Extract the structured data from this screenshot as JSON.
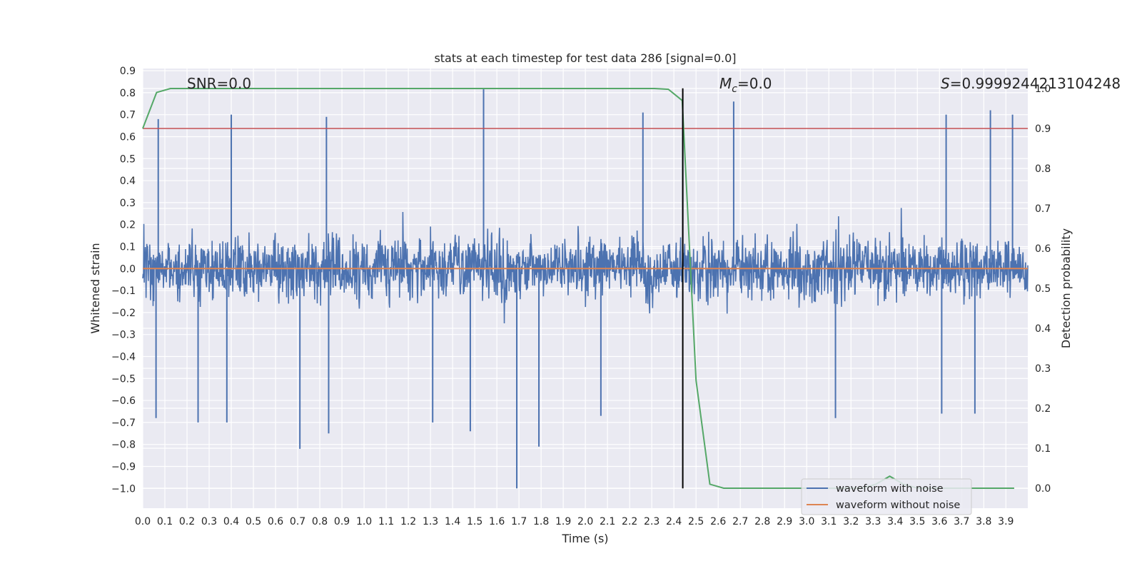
{
  "chart_data": {
    "type": "line",
    "title": "stats at each timestep for test data 286 [signal=0.0]",
    "xlabel": "Time (s)",
    "ylabel": "Whitened strain",
    "ylabel_right": "Detection probability",
    "xlim": [
      0.0,
      3.999
    ],
    "ylim": [
      -1.09,
      0.91
    ],
    "ylim_right": [
      -0.05,
      1.05
    ],
    "x_ticks": [
      0.0,
      0.1,
      0.2,
      0.3,
      0.4,
      0.5,
      0.6,
      0.7,
      0.8,
      0.9,
      1.0,
      1.1,
      1.2,
      1.3,
      1.4,
      1.5,
      1.6,
      1.7,
      1.8,
      1.9,
      2.0,
      2.1,
      2.2,
      2.3,
      2.4,
      2.5,
      2.6,
      2.7,
      2.8,
      2.9,
      3.0,
      3.1,
      3.2,
      3.3,
      3.4,
      3.5,
      3.6,
      3.7,
      3.8,
      3.9
    ],
    "x_tick_labels": [
      "0.0",
      "0.1",
      "0.2",
      "0.3",
      "0.4",
      "0.5",
      "0.6",
      "0.7",
      "0.8",
      "0.9",
      "1.0",
      "1.1",
      "1.2",
      "1.3",
      "1.4",
      "1.5",
      "1.6",
      "1.7",
      "1.8",
      "1.9",
      "2.0",
      "2.1",
      "2.2",
      "2.3",
      "2.4",
      "2.5",
      "2.6",
      "2.7",
      "2.8",
      "2.9",
      "3.0",
      "3.1",
      "3.2",
      "3.3",
      "3.4",
      "3.5",
      "3.6",
      "3.7",
      "3.8",
      "3.9"
    ],
    "y_ticks": [
      0.9,
      0.8,
      0.7,
      0.6,
      0.5,
      0.4,
      0.3,
      0.2,
      0.1,
      0.0,
      -0.1,
      -0.2,
      -0.3,
      -0.4,
      -0.5,
      -0.6,
      -0.7,
      -0.8,
      -0.9,
      -1.0
    ],
    "y_tick_labels": [
      "0.9",
      "0.8",
      "0.7",
      "0.6",
      "0.5",
      "0.4",
      "0.3",
      "0.2",
      "0.1",
      "0.0",
      "−0.1",
      "−0.2",
      "−0.3",
      "−0.4",
      "−0.5",
      "−0.6",
      "−0.7",
      "−0.8",
      "−0.9",
      "−1.0"
    ],
    "y_ticks_right": [
      1.0,
      0.9,
      0.8,
      0.7,
      0.6,
      0.5,
      0.4,
      0.3,
      0.2,
      0.1,
      0.0
    ],
    "y_tick_labels_right": [
      "1.0",
      "0.9",
      "0.8",
      "0.7",
      "0.6",
      "0.5",
      "0.4",
      "0.3",
      "0.2",
      "0.1",
      "0.0"
    ],
    "grid": true,
    "annotations": {
      "snr": "SNR=0.0",
      "mc_symbol": "M",
      "mc_sub": "c",
      "mc_value": "=0.0",
      "s_symbol": "S",
      "s_value": "=0.9999244213104248"
    },
    "legend": {
      "placement": "lower-right",
      "entries": [
        "waveform with noise",
        "waveform without noise"
      ]
    },
    "colors": {
      "noise": "#4c72b0",
      "clean": "#dd8452",
      "probability": "#55a868",
      "threshold": "#c44e52",
      "marker": "#000000"
    },
    "series": [
      {
        "name": "waveform with noise",
        "axis": "left",
        "x_range": [
          0.0,
          3.999
        ],
        "peaks_high": [
          [
            0.07,
            0.68
          ],
          [
            0.4,
            0.7
          ],
          [
            0.83,
            0.69
          ],
          [
            1.54,
            0.82
          ],
          [
            2.26,
            0.71
          ],
          [
            2.44,
            0.7
          ],
          [
            2.67,
            0.76
          ],
          [
            3.63,
            0.7
          ],
          [
            3.83,
            0.72
          ],
          [
            3.93,
            0.7
          ]
        ],
        "peaks_low": [
          [
            0.06,
            -0.68
          ],
          [
            0.25,
            -0.7
          ],
          [
            0.38,
            -0.7
          ],
          [
            0.71,
            -0.82
          ],
          [
            0.84,
            -0.75
          ],
          [
            1.31,
            -0.7
          ],
          [
            1.48,
            -0.74
          ],
          [
            1.69,
            -1.0
          ],
          [
            1.79,
            -0.81
          ],
          [
            2.07,
            -0.67
          ],
          [
            3.13,
            -0.68
          ],
          [
            3.61,
            -0.66
          ],
          [
            3.76,
            -0.66
          ]
        ]
      },
      {
        "name": "waveform without noise",
        "axis": "left",
        "x": [
          0.0,
          3.999
        ],
        "y": [
          0.0,
          0.0
        ]
      },
      {
        "axis": "right",
        "x": [
          0.0,
          0.0625,
          0.125,
          0.1875,
          0.25,
          2.3125,
          2.375,
          2.4375,
          2.5,
          2.5625,
          2.625,
          2.6875,
          3.25,
          3.3125,
          3.375,
          3.4375,
          3.5,
          3.875,
          3.9375
        ],
        "y": [
          0.9,
          0.99,
          1.0,
          1.0,
          1.0,
          1.0,
          0.998,
          0.97,
          0.27,
          0.01,
          0.0,
          0.0,
          0.0,
          0.01,
          0.03,
          0.01,
          0.0,
          0.0,
          0.0
        ]
      },
      {
        "axis": "right",
        "y_const": 0.9
      },
      {
        "axis": "left",
        "x_const": 2.44,
        "y_range": [
          -1.0,
          0.82
        ]
      }
    ]
  }
}
